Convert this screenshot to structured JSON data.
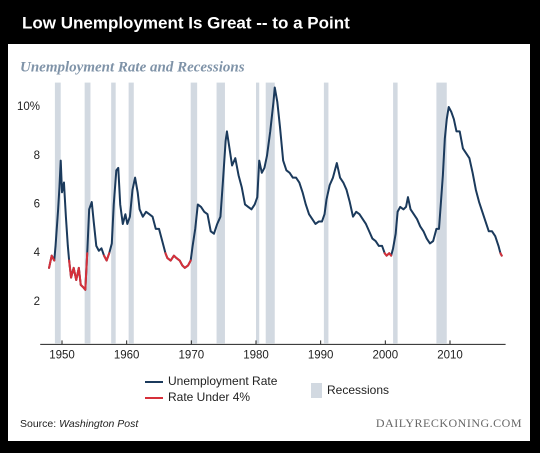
{
  "chart_data": {
    "type": "line",
    "title": "Low Unemployment Is Great -- to a Point",
    "subtitle": "Unemployment Rate and Recessions",
    "source": {
      "label": "Source:",
      "name": "Washington Post"
    },
    "brand": "DAILYRECKONING.COM",
    "x": [
      1948.0,
      1948.4,
      1948.8,
      1949.0,
      1949.4,
      1949.6,
      1949.8,
      1950.0,
      1950.3,
      1950.6,
      1950.9,
      1951.1,
      1951.4,
      1951.8,
      1952.2,
      1952.6,
      1952.9,
      1953.3,
      1953.6,
      1953.9,
      1954.2,
      1954.6,
      1954.9,
      1955.3,
      1955.7,
      1956.1,
      1956.5,
      1956.9,
      1957.3,
      1957.7,
      1958.0,
      1958.4,
      1958.7,
      1959.0,
      1959.4,
      1959.8,
      1960.1,
      1960.5,
      1960.9,
      1961.3,
      1961.7,
      1962.0,
      1962.5,
      1963.0,
      1963.5,
      1964.0,
      1964.5,
      1965.0,
      1965.5,
      1966.0,
      1966.3,
      1966.8,
      1967.3,
      1967.7,
      1968.2,
      1968.6,
      1969.0,
      1969.5,
      1969.9,
      1970.2,
      1970.6,
      1971.0,
      1971.5,
      1972.0,
      1972.5,
      1973.0,
      1973.5,
      1974.0,
      1974.5,
      1974.9,
      1975.3,
      1975.5,
      1975.9,
      1976.3,
      1976.8,
      1977.3,
      1977.8,
      1978.3,
      1978.8,
      1979.3,
      1979.8,
      1980.2,
      1980.5,
      1980.9,
      1981.3,
      1981.7,
      1982.2,
      1982.7,
      1982.9,
      1983.3,
      1983.7,
      1984.2,
      1984.7,
      1985.2,
      1985.7,
      1986.2,
      1986.7,
      1987.2,
      1987.7,
      1988.2,
      1988.7,
      1989.2,
      1989.7,
      1990.2,
      1990.6,
      1990.9,
      1991.4,
      1991.9,
      1992.5,
      1993.0,
      1993.5,
      1994.0,
      1994.5,
      1995.0,
      1995.5,
      1996.0,
      1996.5,
      1997.0,
      1997.5,
      1998.0,
      1998.5,
      1999.0,
      1999.5,
      1999.9,
      2000.2,
      2000.6,
      2000.9,
      2001.2,
      2001.6,
      2001.9,
      2002.3,
      2002.8,
      2003.2,
      2003.5,
      2003.9,
      2004.4,
      2004.9,
      2005.4,
      2005.9,
      2006.4,
      2006.9,
      2007.4,
      2007.9,
      2008.3,
      2008.6,
      2008.9,
      2009.2,
      2009.5,
      2009.8,
      2010.2,
      2010.6,
      2011.0,
      2011.5,
      2012.0,
      2012.5,
      2013.0,
      2013.5,
      2014.0,
      2014.5,
      2015.0,
      2015.5,
      2016.0,
      2016.5,
      2017.0,
      2017.5,
      2017.8,
      2018.0
    ],
    "series": [
      {
        "name": "Unemployment Rate",
        "color": "#1b3a5c",
        "values": [
          3.4,
          3.9,
          3.7,
          4.3,
          5.8,
          6.7,
          7.8,
          6.5,
          6.9,
          5.5,
          4.3,
          3.7,
          3.0,
          3.4,
          2.9,
          3.4,
          2.7,
          2.6,
          2.5,
          4.0,
          5.8,
          6.1,
          5.3,
          4.3,
          4.1,
          4.2,
          3.9,
          3.7,
          4.0,
          4.4,
          6.0,
          7.4,
          7.5,
          6.0,
          5.2,
          5.6,
          5.2,
          5.5,
          6.6,
          7.1,
          6.5,
          5.8,
          5.5,
          5.7,
          5.6,
          5.5,
          5.0,
          5.0,
          4.5,
          4.0,
          3.8,
          3.7,
          3.9,
          3.8,
          3.7,
          3.5,
          3.4,
          3.5,
          3.7,
          4.3,
          5.0,
          6.0,
          5.9,
          5.7,
          5.6,
          4.9,
          4.8,
          5.2,
          5.5,
          7.0,
          8.6,
          9.0,
          8.3,
          7.6,
          7.9,
          7.2,
          6.7,
          6.0,
          5.9,
          5.8,
          6.0,
          6.3,
          7.8,
          7.3,
          7.5,
          8.0,
          9.0,
          10.2,
          10.8,
          10.2,
          9.2,
          7.8,
          7.4,
          7.3,
          7.1,
          7.1,
          6.9,
          6.5,
          6.0,
          5.6,
          5.4,
          5.2,
          5.3,
          5.3,
          5.6,
          6.2,
          6.8,
          7.1,
          7.7,
          7.1,
          6.9,
          6.6,
          6.1,
          5.5,
          5.7,
          5.6,
          5.4,
          5.2,
          4.9,
          4.6,
          4.5,
          4.3,
          4.3,
          4.0,
          3.9,
          4.0,
          3.9,
          4.2,
          4.8,
          5.7,
          5.9,
          5.8,
          5.9,
          6.3,
          5.8,
          5.6,
          5.4,
          5.1,
          4.9,
          4.6,
          4.4,
          4.5,
          5.0,
          5.0,
          6.1,
          7.2,
          8.7,
          9.5,
          10.0,
          9.8,
          9.5,
          9.0,
          9.0,
          8.3,
          8.1,
          7.9,
          7.3,
          6.6,
          6.1,
          5.7,
          5.3,
          4.9,
          4.9,
          4.7,
          4.3,
          4.0,
          3.9
        ]
      },
      {
        "name": "Rate Under 4%",
        "color": "#d6303a",
        "values": [
          3.4,
          3.9,
          3.7,
          null,
          null,
          null,
          null,
          null,
          null,
          null,
          null,
          3.7,
          3.0,
          3.4,
          2.9,
          3.4,
          2.7,
          2.6,
          2.5,
          4.0,
          null,
          null,
          null,
          null,
          null,
          null,
          3.9,
          3.7,
          4.0,
          null,
          null,
          null,
          null,
          null,
          null,
          null,
          null,
          null,
          null,
          null,
          null,
          null,
          null,
          null,
          null,
          null,
          null,
          null,
          null,
          4.0,
          3.8,
          3.7,
          3.9,
          3.8,
          3.7,
          3.5,
          3.4,
          3.5,
          3.7,
          null,
          null,
          null,
          null,
          null,
          null,
          null,
          null,
          null,
          null,
          null,
          null,
          null,
          null,
          null,
          null,
          null,
          null,
          null,
          null,
          null,
          null,
          null,
          null,
          null,
          null,
          null,
          null,
          null,
          null,
          null,
          null,
          null,
          null,
          null,
          null,
          null,
          null,
          null,
          null,
          null,
          null,
          null,
          null,
          null,
          null,
          null,
          null,
          null,
          null,
          null,
          null,
          null,
          null,
          null,
          null,
          null,
          null,
          null,
          null,
          null,
          null,
          null,
          null,
          4.0,
          3.9,
          4.0,
          3.9,
          null,
          null,
          null,
          null,
          null,
          null,
          null,
          null,
          null,
          null,
          null,
          null,
          null,
          null,
          null,
          null,
          null,
          null,
          null,
          null,
          null,
          null,
          null,
          null,
          null,
          null,
          null,
          null,
          null,
          null,
          null,
          null,
          null,
          null,
          null,
          null,
          null,
          null,
          4.0,
          3.9
        ]
      }
    ],
    "recessions": {
      "name": "Recessions",
      "color": "#d2d9e1",
      "periods": [
        [
          1948.9,
          1949.8
        ],
        [
          1953.5,
          1954.4
        ],
        [
          1957.6,
          1958.3
        ],
        [
          1960.3,
          1961.1
        ],
        [
          1969.9,
          1970.9
        ],
        [
          1973.9,
          1975.2
        ],
        [
          1980.0,
          1980.5
        ],
        [
          1981.5,
          1982.9
        ],
        [
          1990.5,
          1991.2
        ],
        [
          2001.2,
          2001.9
        ],
        [
          2007.9,
          2009.5
        ]
      ]
    },
    "xlim": [
      1947.4,
      2018.6
    ],
    "xticks": [
      1950,
      1960,
      1970,
      1980,
      1990,
      2000,
      2010
    ],
    "ylim": [
      0.3,
      11
    ],
    "yticks": [
      2,
      4,
      6,
      8,
      {
        "value": 10,
        "label": "10%"
      }
    ],
    "grid": false
  }
}
